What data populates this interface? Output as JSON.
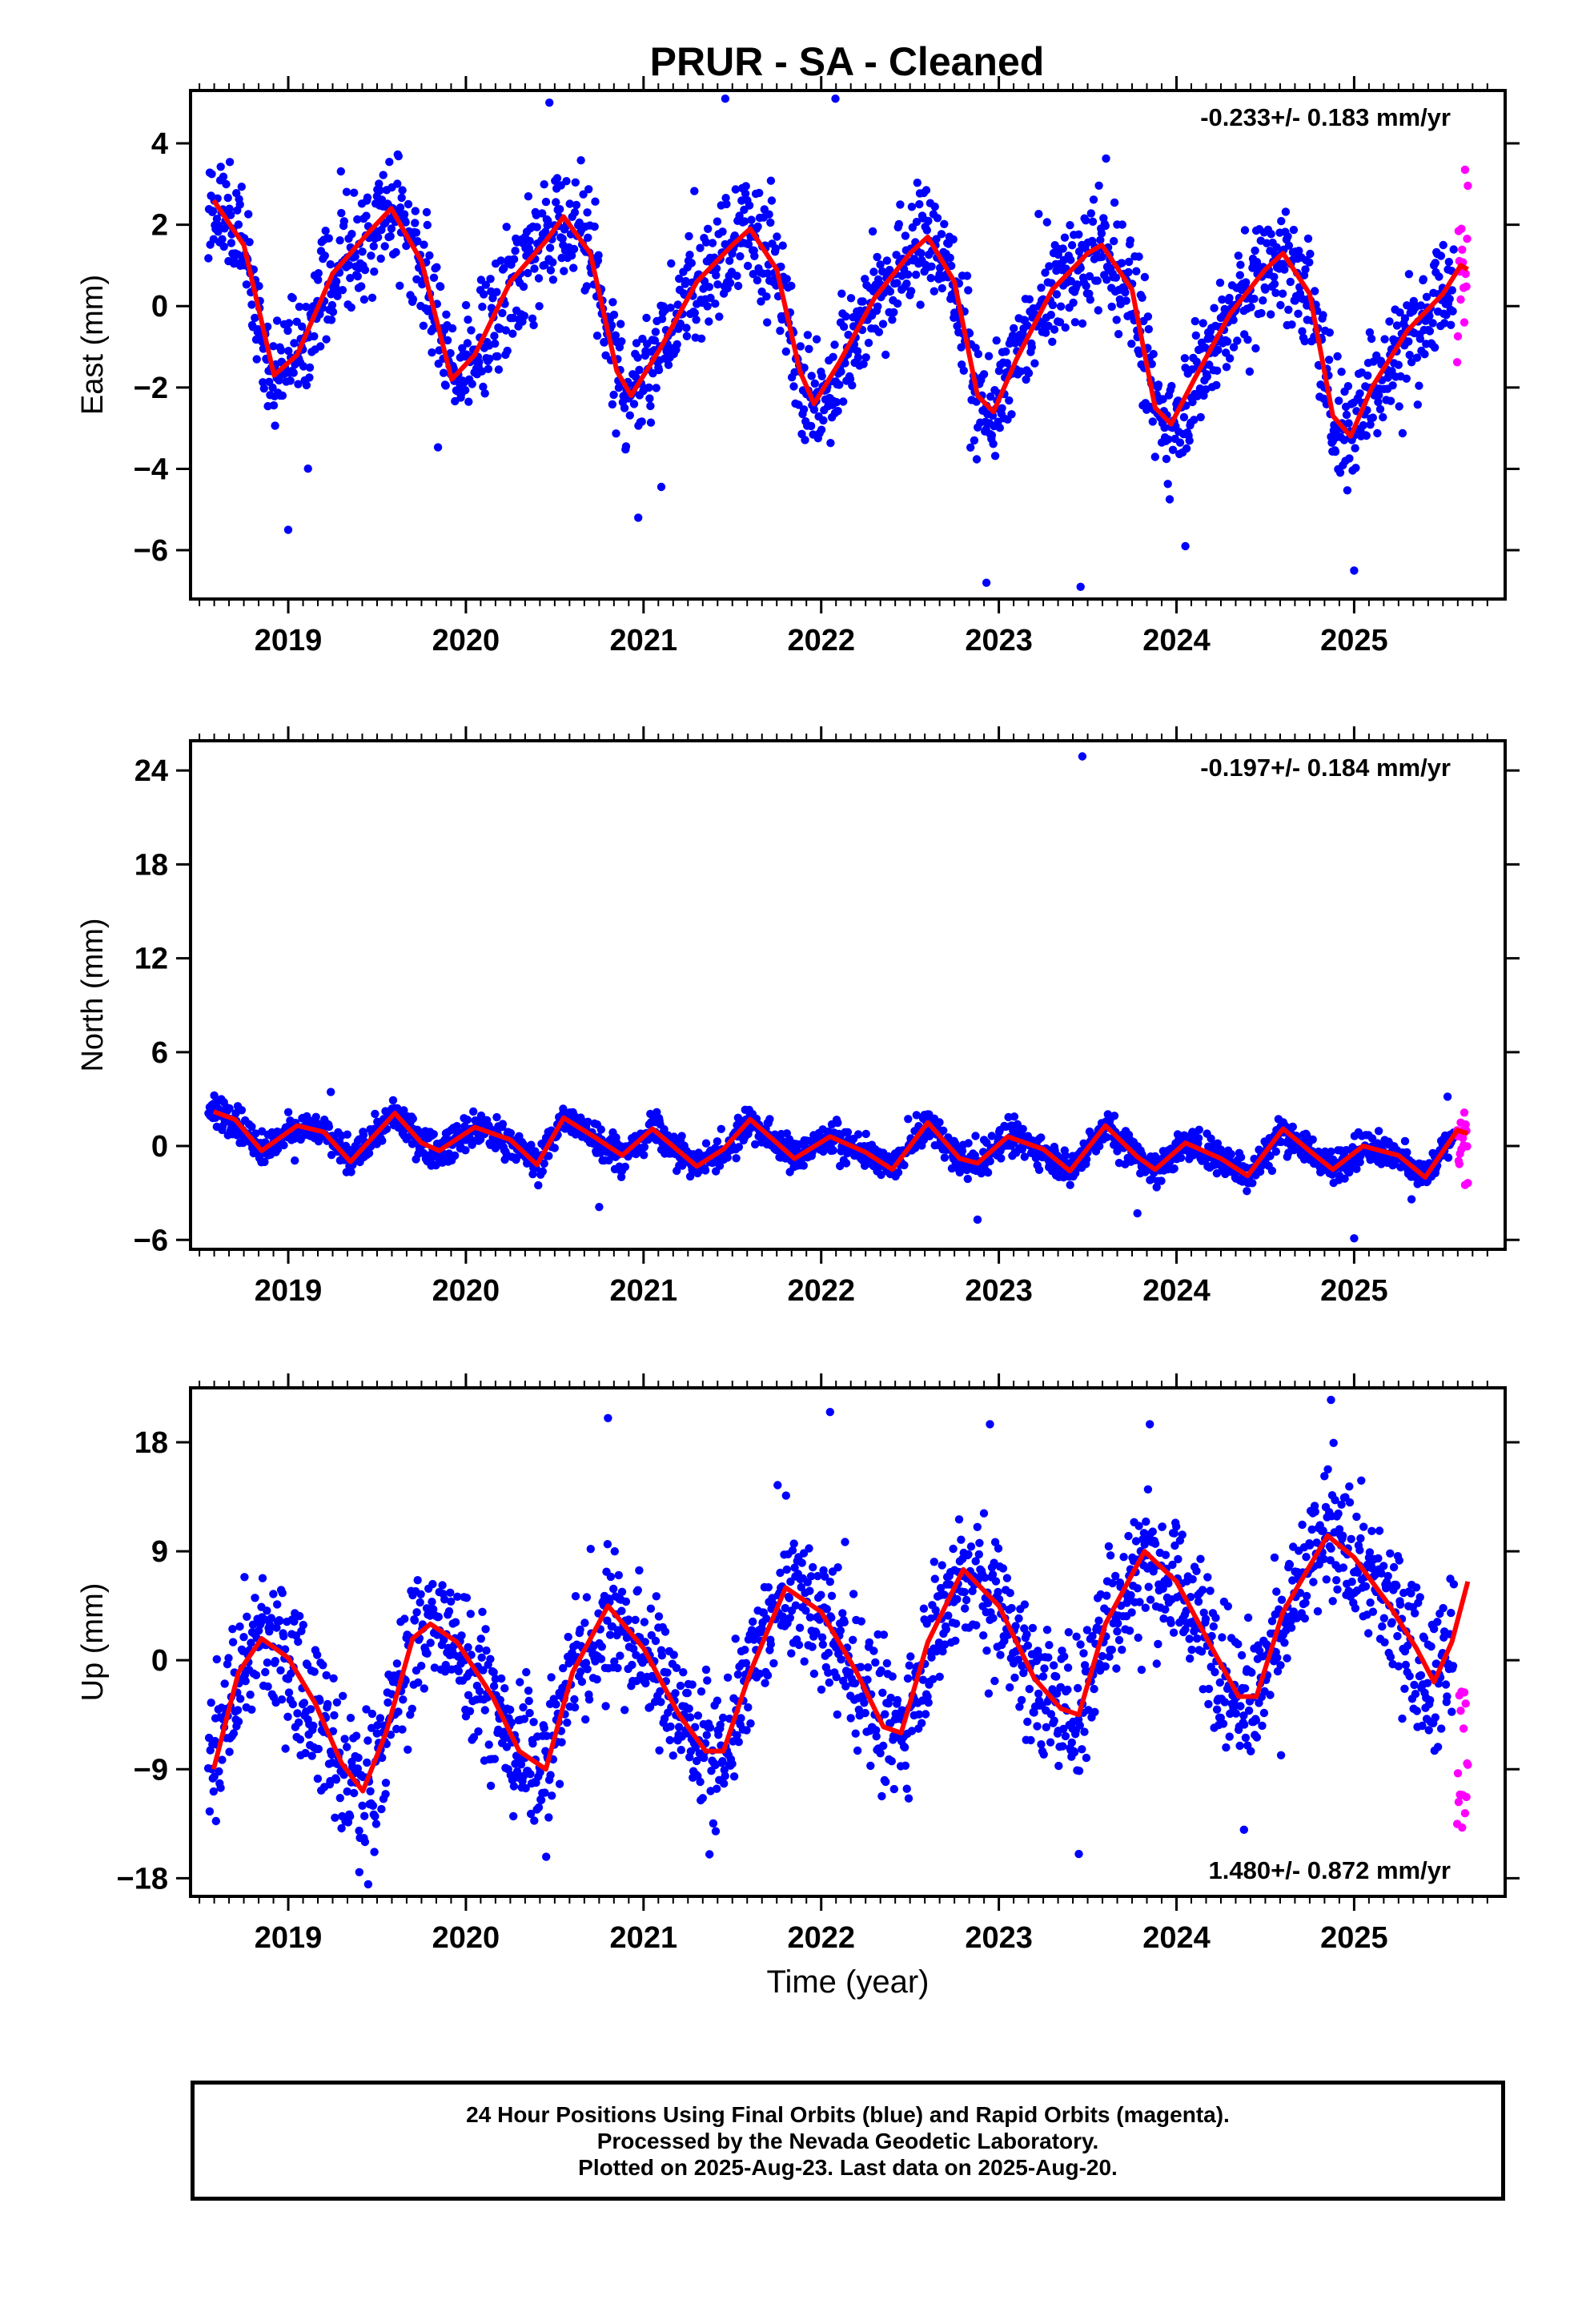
{
  "title": "PRUR  - SA - Cleaned",
  "footer": {
    "line1": "24 Hour Positions Using Final Orbits (blue) and Rapid Orbits (magenta).",
    "line2": "Processed by the Nevada Geodetic Laboratory.",
    "line3": "Plotted on 2025-Aug-23. Last data on 2025-Aug-20."
  },
  "colors": {
    "final": "#0000ff",
    "rapid": "#ff00ff",
    "model": "#ff0000"
  },
  "chart_data": [
    {
      "type": "scatter",
      "ylabel": "East (mm)",
      "xlabel": "",
      "rate": "-0.233+/- 0.183 mm/yr",
      "xlim": [
        2018.45,
        2025.85
      ],
      "ylim": [
        -7.2,
        5.3
      ],
      "yticks": [
        4,
        2,
        0,
        -2,
        -4,
        -6
      ],
      "yticklabels": [
        "4",
        "2",
        "0",
        "−2",
        "−4",
        "−6"
      ],
      "xticks": [
        2019,
        2020,
        2021,
        2022,
        2023,
        2024,
        2025
      ],
      "model": {
        "x": [
          2018.58,
          2018.75,
          2018.92,
          2019.05,
          2019.25,
          2019.45,
          2019.58,
          2019.75,
          2019.92,
          2020.05,
          2020.25,
          2020.45,
          2020.55,
          2020.7,
          2020.85,
          2020.93,
          2021.1,
          2021.3,
          2021.5,
          2021.6,
          2021.75,
          2021.88,
          2021.96,
          2022.1,
          2022.3,
          2022.5,
          2022.6,
          2022.75,
          2022.88,
          2022.97,
          2023.1,
          2023.3,
          2023.5,
          2023.58,
          2023.75,
          2023.88,
          2023.97,
          2024.1,
          2024.3,
          2024.5,
          2024.6,
          2024.75,
          2024.88,
          2024.98,
          2025.1,
          2025.3,
          2025.5,
          2025.6,
          2025.64
        ],
        "y": [
          2.6,
          1.5,
          -1.7,
          -1.2,
          0.8,
          1.8,
          2.4,
          1.1,
          -1.8,
          -1.2,
          0.6,
          1.6,
          2.2,
          1.3,
          -1.6,
          -2.2,
          -1.0,
          0.6,
          1.5,
          1.9,
          0.9,
          -1.6,
          -2.4,
          -1.4,
          0.2,
          1.3,
          1.7,
          0.6,
          -2.2,
          -2.6,
          -1.3,
          0.4,
          1.3,
          1.5,
          0.4,
          -2.5,
          -2.9,
          -1.8,
          -0.2,
          0.9,
          1.3,
          0.3,
          -2.7,
          -3.2,
          -2.0,
          -0.6,
          0.3,
          1.0,
          0.9
        ]
      },
      "final": {
        "amp": 2.0,
        "phase": 0.55,
        "offset": -0.25,
        "slope": -0.233,
        "noise": 1.0,
        "x0": 2018.55,
        "x1": 2025.56
      },
      "rapid": {
        "x0": 2025.58,
        "x1": 2025.64,
        "y_min": -1.9,
        "y_max": 4.0
      },
      "outliers": [
        [
          2019.0,
          -5.5
        ],
        [
          2020.97,
          -5.2
        ],
        [
          2022.93,
          -6.8
        ],
        [
          2023.46,
          -6.9
        ],
        [
          2024.05,
          -5.9
        ],
        [
          2025.0,
          -6.5
        ],
        [
          2021.46,
          5.1
        ],
        [
          2022.08,
          5.1
        ],
        [
          2020.47,
          5.0
        ]
      ]
    },
    {
      "type": "scatter",
      "ylabel": "North (mm)",
      "xlabel": "",
      "rate": "-0.197+/- 0.184 mm/yr",
      "xlim": [
        2018.45,
        2025.85
      ],
      "ylim": [
        -6.6,
        25.9
      ],
      "yticks": [
        24,
        18,
        12,
        6,
        0,
        -6
      ],
      "yticklabels": [
        "24",
        "18",
        "12",
        "6",
        "0",
        "−6"
      ],
      "xticks": [
        2019,
        2020,
        2021,
        2022,
        2023,
        2024,
        2025
      ],
      "model": {
        "x": [
          2018.58,
          2018.7,
          2018.85,
          2019.05,
          2019.2,
          2019.35,
          2019.6,
          2019.75,
          2019.85,
          2020.05,
          2020.25,
          2020.4,
          2020.55,
          2020.72,
          2020.88,
          2021.05,
          2021.3,
          2021.45,
          2021.6,
          2021.72,
          2021.85,
          2022.05,
          2022.25,
          2022.4,
          2022.6,
          2022.78,
          2022.88,
          2023.05,
          2023.25,
          2023.4,
          2023.6,
          2023.78,
          2023.88,
          2024.05,
          2024.25,
          2024.4,
          2024.6,
          2024.78,
          2024.88,
          2025.05,
          2025.25,
          2025.4,
          2025.58,
          2025.64
        ],
        "y": [
          2.2,
          1.7,
          -0.3,
          1.3,
          0.9,
          -1.0,
          2.1,
          0.2,
          -0.3,
          1.2,
          0.4,
          -1.2,
          1.8,
          0.6,
          -0.6,
          1.1,
          -1.3,
          -0.2,
          1.7,
          0.5,
          -0.8,
          0.6,
          -0.4,
          -1.5,
          1.5,
          -0.8,
          -1.1,
          0.6,
          -0.2,
          -1.6,
          1.3,
          -0.7,
          -1.5,
          0.2,
          -0.8,
          -1.9,
          1.1,
          -0.6,
          -1.5,
          0.0,
          -0.6,
          -2.0,
          1.0,
          0.8
        ]
      },
      "final": {
        "amp": 1.2,
        "phase": 0.3,
        "offset": 0.0,
        "slope": -0.197,
        "noise": 0.75,
        "x0": 2018.55,
        "x1": 2025.56
      },
      "rapid": {
        "x0": 2025.58,
        "x1": 2025.64,
        "y_min": -2.5,
        "y_max": 2.2
      },
      "outliers": [
        [
          2023.47,
          24.9
        ],
        [
          2025.0,
          -5.9
        ],
        [
          2022.88,
          -4.7
        ],
        [
          2020.75,
          -3.9
        ],
        [
          2023.78,
          -4.3
        ]
      ]
    },
    {
      "type": "scatter",
      "ylabel": "Up (mm)",
      "xlabel": "Time (year)",
      "rate": "1.480+/- 0.872 mm/yr",
      "xlim": [
        2018.45,
        2025.85
      ],
      "ylim": [
        -19.5,
        22.5
      ],
      "yticks": [
        18,
        9,
        0,
        -9,
        -18
      ],
      "yticklabels": [
        "18",
        "9",
        "0",
        "−9",
        "−18"
      ],
      "xticks": [
        2019,
        2020,
        2021,
        2022,
        2023,
        2024,
        2025
      ],
      "model": {
        "x": [
          2018.58,
          2018.72,
          2018.85,
          2019.0,
          2019.15,
          2019.3,
          2019.42,
          2019.55,
          2019.7,
          2019.8,
          2019.95,
          2020.15,
          2020.3,
          2020.45,
          2020.6,
          2020.8,
          2021.0,
          2021.2,
          2021.35,
          2021.45,
          2021.6,
          2021.8,
          2022.0,
          2022.2,
          2022.35,
          2022.45,
          2022.6,
          2022.8,
          2023.0,
          2023.2,
          2023.35,
          2023.45,
          2023.6,
          2023.82,
          2024.0,
          2024.2,
          2024.35,
          2024.45,
          2024.6,
          2024.85,
          2025.0,
          2025.2,
          2025.35,
          2025.45,
          2025.55,
          2025.64
        ],
        "y": [
          -9.0,
          -1.0,
          1.8,
          0.2,
          -3.5,
          -8.5,
          -10.8,
          -6.0,
          1.8,
          3.0,
          1.5,
          -3.0,
          -7.5,
          -9.0,
          -1.0,
          4.5,
          1.0,
          -4.5,
          -7.5,
          -7.5,
          -1.0,
          6.0,
          4.0,
          -1.0,
          -5.5,
          -6.0,
          1.5,
          7.5,
          4.5,
          -1.5,
          -4.0,
          -4.5,
          3.0,
          9.0,
          6.5,
          1.0,
          -3.0,
          -3.0,
          4.0,
          10.3,
          8.5,
          4.5,
          1.0,
          -1.8,
          1.5,
          6.5
        ]
      },
      "final": {
        "amp": 7.0,
        "phase": 0.2,
        "offset": -1.0,
        "slope": 1.48,
        "noise": 4.0,
        "x0": 2018.55,
        "x1": 2025.56
      },
      "rapid": {
        "x0": 2025.58,
        "x1": 2025.64,
        "y_min": -14.0,
        "y_max": -2.5
      },
      "outliers": [
        [
          2019.45,
          -18.5
        ],
        [
          2019.4,
          -17.5
        ],
        [
          2024.87,
          21.5
        ],
        [
          2022.05,
          20.5
        ],
        [
          2020.8,
          20.0
        ],
        [
          2022.95,
          19.5
        ],
        [
          2023.85,
          19.5
        ],
        [
          2023.45,
          -16.0
        ],
        [
          2024.38,
          -14.0
        ]
      ]
    }
  ]
}
